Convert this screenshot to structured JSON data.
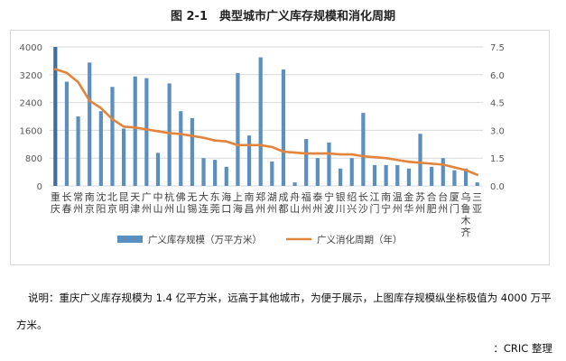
{
  "figure": {
    "title": "图 2-1　典型城市广义库存规模和消化周期",
    "note": "说明：重庆广义库存规模为 1.4 亿平方米，远高于其他城市，为便于展示，上图库存规模纵坐标极值为 4000 万平方米。",
    "source": "：CRIC 整理"
  },
  "colors": {
    "bar": "#5b8fc0",
    "bar_highlight": "#3c6f9f",
    "line": "#e3843c",
    "grid": "#d9d9d9",
    "axis_text": "#595959"
  },
  "chart_data": {
    "type": "bar",
    "categories": [
      "重庆",
      "长春",
      "常州",
      "南京",
      "沈阳",
      "北京",
      "昆明",
      "天津",
      "广州",
      "中山",
      "杭州",
      "佛山",
      "无锡",
      "大连",
      "东莞",
      "海口",
      "上海",
      "南昌",
      "郑州",
      "湖州",
      "成都",
      "舟山",
      "福州",
      "泰州",
      "宁波",
      "银川",
      "绍兴",
      "长沙",
      "江门",
      "南宁",
      "温州",
      "金华",
      "苏州",
      "合肥",
      "台州",
      "厦门",
      "乌鲁木齐",
      "三亚"
    ],
    "series": [
      {
        "name": "广义库存规模（万平方米）",
        "type": "bar",
        "axis": "left",
        "values": [
          4000,
          3000,
          2000,
          3550,
          2150,
          2850,
          1650,
          3150,
          3100,
          950,
          2950,
          2150,
          1950,
          800,
          750,
          550,
          3250,
          1450,
          3700,
          700,
          3350,
          100,
          1350,
          800,
          1250,
          500,
          800,
          2100,
          600,
          600,
          600,
          500,
          1500,
          550,
          800,
          450,
          500,
          100
        ]
      },
      {
        "name": "广义消化周期（年）",
        "type": "line",
        "axis": "right",
        "values": [
          6.3,
          6.1,
          5.6,
          4.6,
          4.2,
          3.6,
          3.2,
          3.15,
          3.05,
          2.95,
          2.85,
          2.8,
          2.7,
          2.6,
          2.45,
          2.4,
          2.2,
          2.2,
          2.2,
          2.1,
          1.85,
          1.8,
          1.75,
          1.75,
          1.75,
          1.7,
          1.7,
          1.6,
          1.55,
          1.5,
          1.4,
          1.3,
          1.25,
          1.2,
          1.15,
          1.0,
          0.85,
          0.6
        ]
      }
    ],
    "y_left": {
      "min": 0,
      "max": 4000,
      "ticks": [
        "0",
        "800",
        "1600",
        "2400",
        "3200",
        "4000"
      ]
    },
    "y_right": {
      "min": 0,
      "max": 7.5,
      "ticks": [
        "0.0",
        "1.5",
        "3.0",
        "4.5",
        "6.0",
        "7.5"
      ]
    },
    "legend": {
      "position": "bottom",
      "items": [
        {
          "label": "广义库存规模（万平方米）",
          "kind": "bar"
        },
        {
          "label": "广义消化周期（年）",
          "kind": "line"
        }
      ]
    },
    "grid": true
  }
}
